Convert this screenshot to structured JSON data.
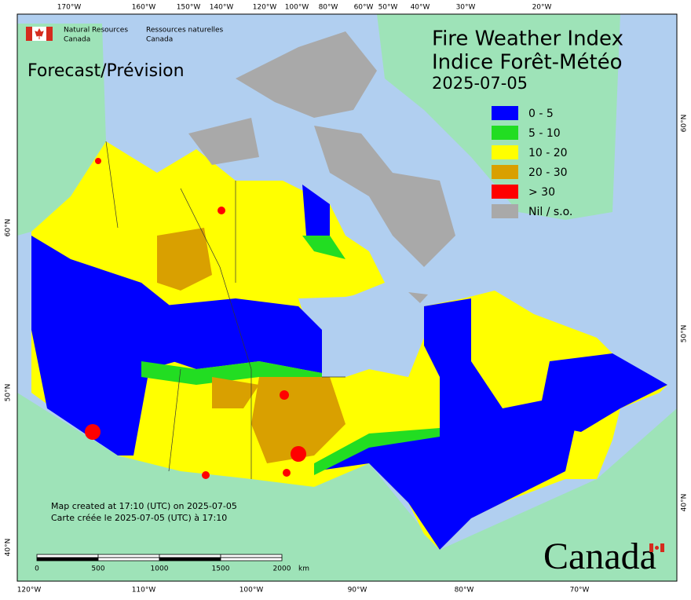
{
  "logo": {
    "en_line1": "Natural Resources",
    "en_line2": "Canada",
    "fr_line1": "Ressources naturelles",
    "fr_line2": "Canada"
  },
  "title": {
    "line1": "Fire Weather Index",
    "line2": "Indice Forêt-Météo",
    "date": "2025-07-05"
  },
  "subtitle": "Forecast/Prévision",
  "legend": [
    {
      "label": "0 - 5",
      "color": "#0000ff"
    },
    {
      "label": "5 - 10",
      "color": "#22dd22"
    },
    {
      "label": "10 - 20",
      "color": "#ffff00"
    },
    {
      "label": "20 - 30",
      "color": "#d9a000"
    },
    {
      "label": "> 30",
      "color": "#ff0000"
    },
    {
      "label": "Nil / s.o.",
      "color": "#a9a9a9"
    }
  ],
  "top_labels": [
    "170°W",
    "160°W",
    "150°W",
    "140°W",
    "120°W",
    "100°W",
    "80°W",
    "60°W",
    "50°W",
    "40°W",
    "30°W",
    "20°W"
  ],
  "bottom_labels": [
    "120°W",
    "110°W",
    "100°W",
    "90°W",
    "80°W",
    "70°W"
  ],
  "left_labels": [
    "60°N",
    "50°N",
    "40°N"
  ],
  "right_labels": [
    "60°N",
    "50°N",
    "40°N"
  ],
  "footer": {
    "created_en": "Map created at 17:10 (UTC) on 2025-07-05",
    "created_fr": "Carte créée le 2025-07-05 (UTC) à 17:10"
  },
  "scale": {
    "ticks": [
      "0",
      "500",
      "1000",
      "1500",
      "2000"
    ],
    "unit": "km"
  },
  "wordmark": "Canada"
}
